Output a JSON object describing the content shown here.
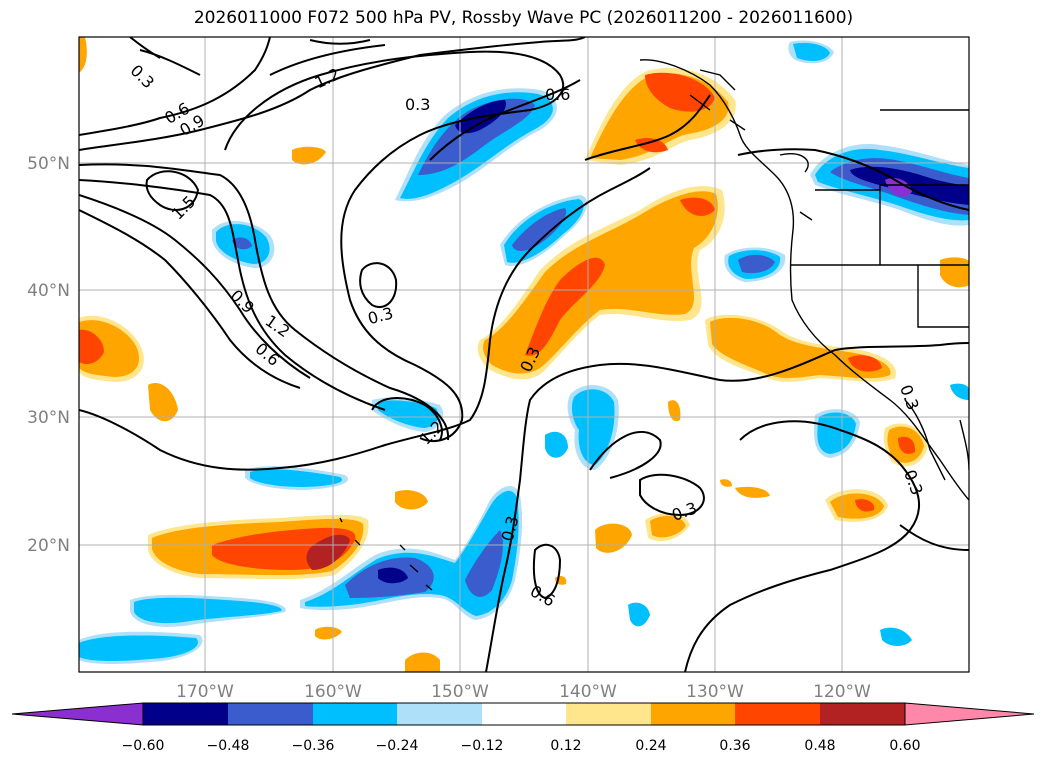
{
  "title": "2026011000 F072 500 hPa PV, Rossby Wave PC (2026011200 - 2026011600)",
  "axes": {
    "lon_ticks": [
      "170°W",
      "160°W",
      "150°W",
      "140°W",
      "130°W",
      "120°W"
    ],
    "lat_ticks": [
      "50°N",
      "40°N",
      "30°N",
      "20°N"
    ]
  },
  "colorbar": {
    "levels": [
      "−0.60",
      "−0.48",
      "−0.36",
      "−0.24",
      "−0.12",
      "0.12",
      "0.24",
      "0.36",
      "0.48",
      "0.60"
    ],
    "colors": [
      "#8b2fd1",
      "#00008b",
      "#3a5ccc",
      "#00bfff",
      "#afe0fa",
      "#ffffff",
      "#ffe68c",
      "#ffa500",
      "#ff4500",
      "#b22222",
      "#ff88aa"
    ]
  },
  "contour_labels": [
    "0.3",
    "0.6",
    "0.9",
    "1.2",
    "1.5",
    "0.3",
    "0.6",
    "0.9",
    "1.2",
    "0.6",
    "0.3",
    "1.2",
    "0.3",
    "0.6",
    "0.3",
    "0.3",
    "0.3",
    "0.3"
  ],
  "colors": {
    "orange": "#ffa500",
    "red": "#ff4500",
    "darkred": "#b22222",
    "yellow": "#ffe68c",
    "cyan": "#00bfff",
    "lightblue": "#afe0fa",
    "blue": "#3a5ccc",
    "navy": "#00008b",
    "purple": "#8b2fd1"
  }
}
